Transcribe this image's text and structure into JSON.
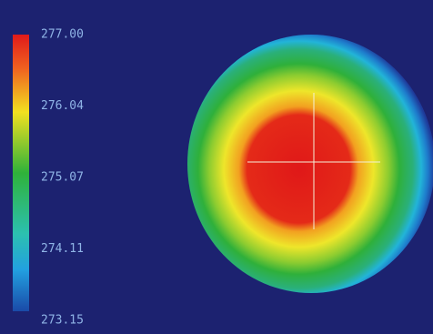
{
  "colorbar": {
    "labels": [
      "277.00",
      "276.04",
      "275.07",
      "274.11",
      "273.15"
    ]
  }
}
